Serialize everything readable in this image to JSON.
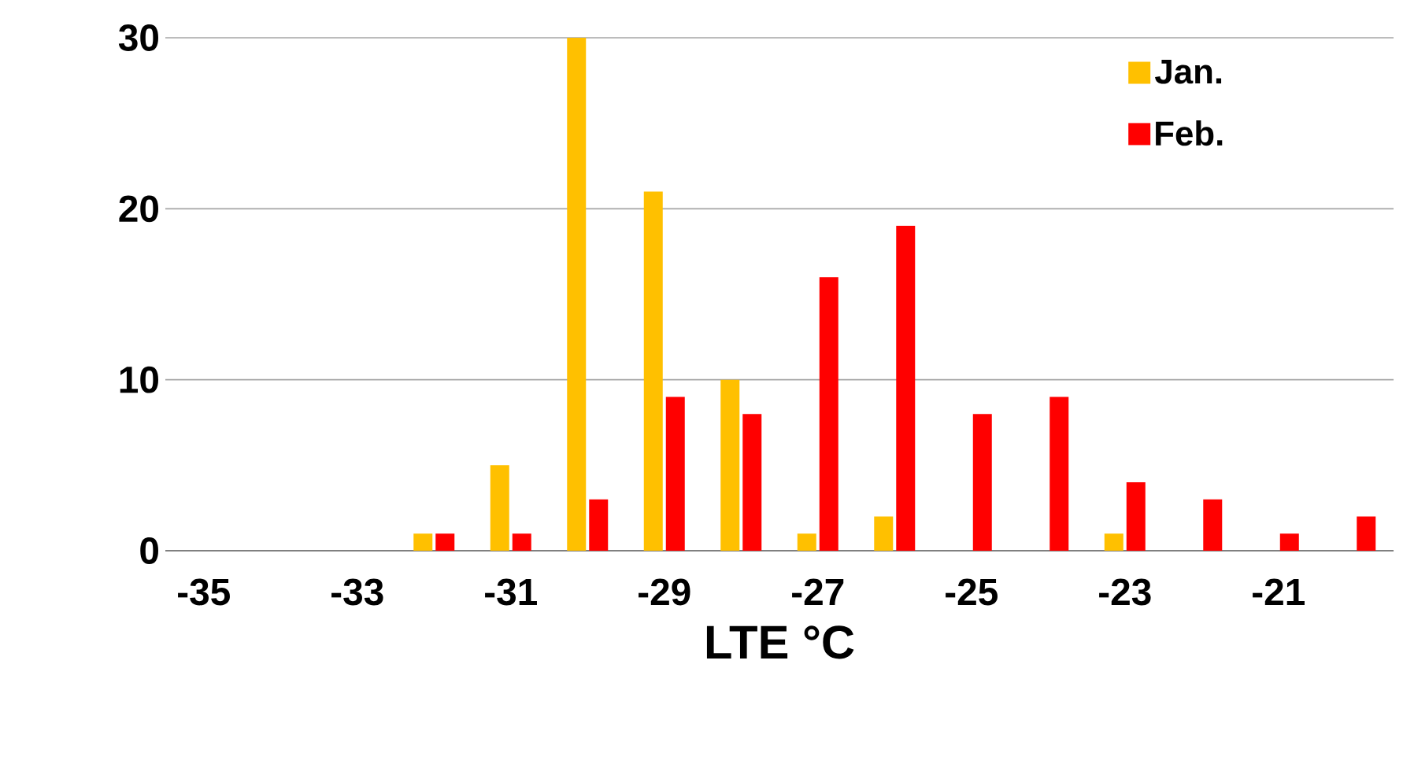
{
  "chart_data": {
    "type": "bar",
    "xlabel": "LTE °C",
    "categories": [
      "-35",
      null,
      "-33",
      null,
      "-31",
      null,
      "-29",
      null,
      "-27",
      null,
      "-25",
      null,
      "-23",
      null,
      "-21",
      null
    ],
    "series": [
      {
        "name": "Jan.",
        "color": "#ffc000",
        "values": [
          0,
          0,
          0,
          1,
          5,
          30,
          21,
          10,
          1,
          2,
          0,
          0,
          1,
          0,
          0,
          0
        ]
      },
      {
        "name": "Feb.",
        "color": "#ff0000",
        "values": [
          0,
          0,
          0,
          1,
          1,
          3,
          9,
          8,
          16,
          19,
          8,
          9,
          4,
          3,
          1,
          2
        ]
      }
    ],
    "ylim": [
      0,
      30
    ],
    "yticks": [
      0,
      10,
      20,
      30
    ],
    "grid": "y",
    "legend": "top right"
  }
}
